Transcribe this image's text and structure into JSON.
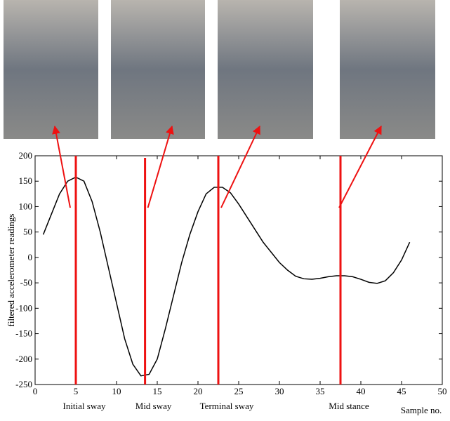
{
  "chart_data": {
    "type": "line",
    "xlabel": "Sample no.",
    "ylabel": "filtered accelerometer readings",
    "x": [
      1,
      2,
      3,
      4,
      5,
      6,
      7,
      8,
      9,
      10,
      11,
      12,
      13,
      14,
      15,
      16,
      17,
      18,
      19,
      20,
      21,
      22,
      23,
      24,
      25,
      26,
      27,
      28,
      29,
      30,
      31,
      32,
      33,
      34,
      35,
      36,
      37,
      38,
      39,
      40,
      41,
      42,
      43,
      44,
      45,
      46
    ],
    "values": [
      45,
      85,
      125,
      150,
      158,
      150,
      110,
      50,
      -20,
      -90,
      -160,
      -210,
      -233,
      -230,
      -200,
      -140,
      -75,
      -10,
      45,
      90,
      125,
      138,
      138,
      127,
      105,
      80,
      55,
      30,
      10,
      -10,
      -25,
      -37,
      -42,
      -43,
      -41,
      -38,
      -36,
      -36,
      -38,
      -43,
      -49,
      -51,
      -46,
      -30,
      -5,
      30
    ],
    "color": "#000000",
    "xlim": [
      0,
      50
    ],
    "xticks": [
      0,
      5,
      10,
      15,
      20,
      25,
      30,
      35,
      40,
      45,
      50
    ],
    "ylim": [
      -250,
      200
    ],
    "yticks": [
      -250,
      -200,
      -150,
      -100,
      -50,
      0,
      50,
      100,
      150,
      200
    ],
    "markers": [
      {
        "x": 5,
        "label": "Initial sway"
      },
      {
        "x": 13.5,
        "label": "Mid sway"
      },
      {
        "x": 22.5,
        "label": "Terminal sway"
      },
      {
        "x": 37.5,
        "label": "Mid stance"
      }
    ],
    "marker_color": "#ee1111"
  }
}
